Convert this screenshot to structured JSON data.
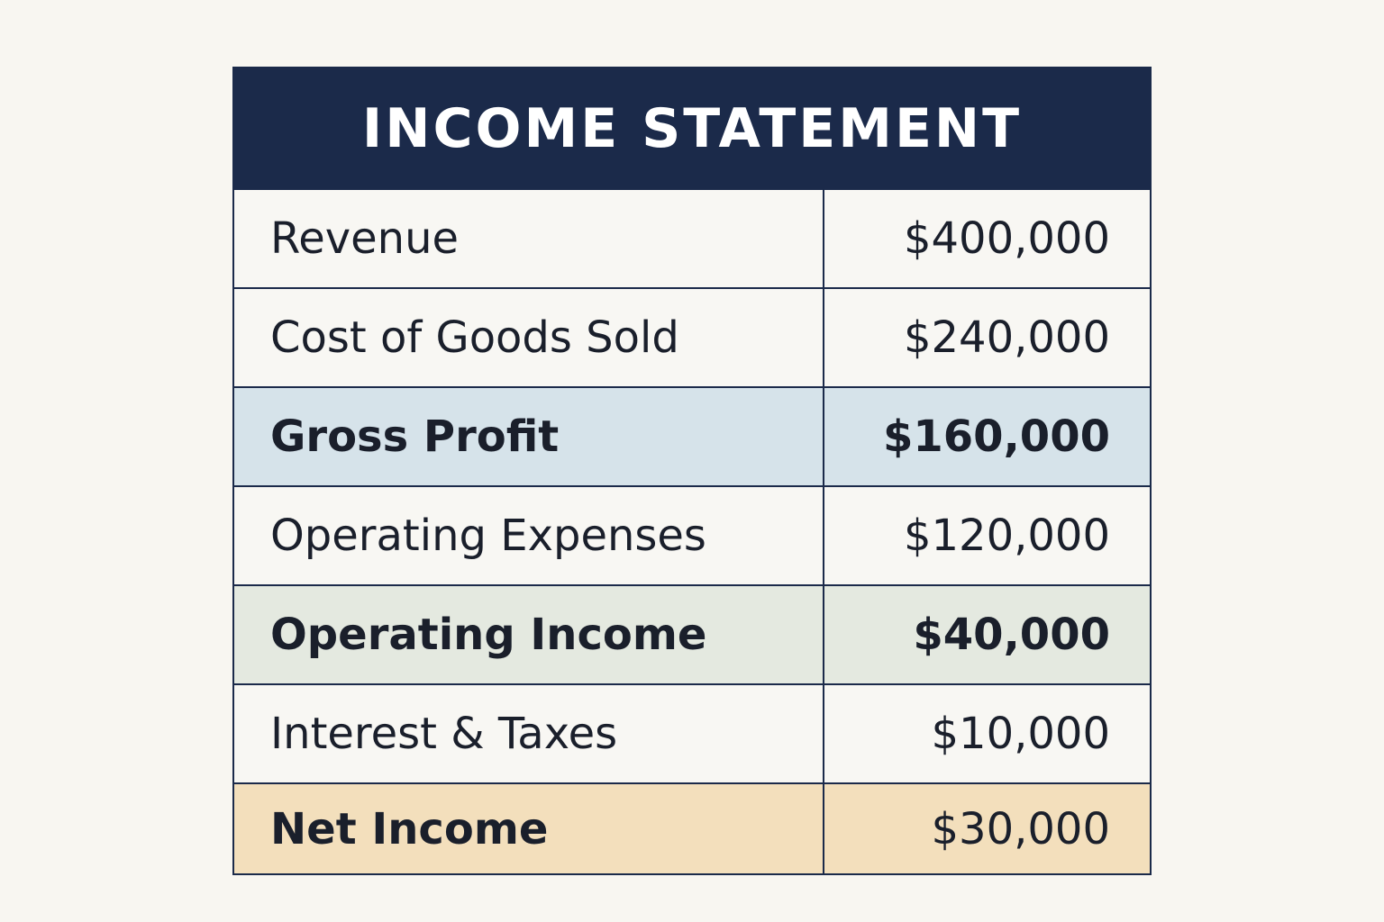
{
  "title": "INCOME STATEMENT",
  "rows": [
    {
      "label": "Revenue",
      "value": "$400,000"
    },
    {
      "label": "Cost of Goods Sold",
      "value": "$240,000"
    },
    {
      "label": "Gross Profit",
      "value": "$160,000"
    },
    {
      "label": "Operating Expenses",
      "value": "$120,000"
    },
    {
      "label": "Operating Income",
      "value": "$40,000"
    },
    {
      "label": "Interest & Taxes",
      "value": "$10,000"
    },
    {
      "label": "Net Income",
      "value": "$30,000"
    }
  ],
  "colors": {
    "header": "#1b2a4a",
    "gross_profit": "#d6e3ea",
    "operating_income": "#e4e9e0",
    "net_income": "#f3dfbc",
    "background": "#f8f6f1"
  }
}
